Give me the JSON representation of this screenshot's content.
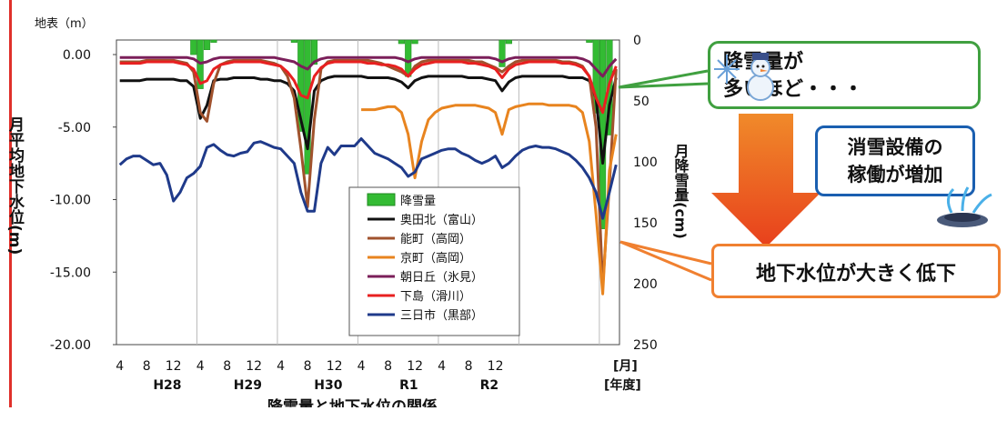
{
  "chart_data": {
    "type": "bar+line",
    "caption": "降雪量と地下水位の関係",
    "left_axis": {
      "label": "月平均地下水位(m)",
      "top_label": "地表（m）",
      "ticks": [
        "0.00",
        "-5.00",
        "-10.00",
        "-15.00",
        "-20.00"
      ],
      "range": [
        -20,
        0
      ]
    },
    "right_axis": {
      "label": "月降雪量(cm)",
      "ticks": [
        "0",
        "50",
        "100",
        "150",
        "200",
        "250"
      ],
      "range": [
        0,
        250
      ]
    },
    "x_month_ticks": [
      "4",
      "8",
      "12",
      "4",
      "8",
      "12",
      "4",
      "8",
      "12",
      "4",
      "8",
      "12",
      "4",
      "8",
      "12"
    ],
    "x_year_labels": [
      "H28",
      "H29",
      "H30",
      "R1",
      "R2"
    ],
    "x_unit_month": "[月]",
    "x_unit_year": "[年度]",
    "snowfall": {
      "name": "降雪量",
      "color": "#33bb33",
      "values": [
        0,
        0,
        0,
        0,
        0,
        0,
        0,
        0,
        0,
        0,
        0,
        12,
        40,
        8,
        2,
        0,
        0,
        0,
        0,
        0,
        0,
        0,
        0,
        0,
        0,
        0,
        2,
        75,
        110,
        20,
        0,
        0,
        0,
        0,
        0,
        0,
        0,
        0,
        0,
        0,
        0,
        0,
        3,
        30,
        3,
        0,
        0,
        0,
        0,
        0,
        0,
        0,
        0,
        0,
        0,
        0,
        0,
        22,
        3,
        0,
        0,
        0,
        0,
        0,
        0,
        0,
        0,
        0,
        0,
        0,
        2,
        60,
        155,
        78,
        0
      ]
    },
    "series": [
      {
        "name": "奥田北（富山）",
        "color": "#111111",
        "values": [
          -1.8,
          -1.8,
          -1.8,
          -1.8,
          -1.7,
          -1.7,
          -1.7,
          -1.7,
          -1.7,
          -1.8,
          -1.8,
          -2.2,
          -4.4,
          -3.5,
          -1.8,
          -1.7,
          -1.7,
          -1.6,
          -1.6,
          -1.6,
          -1.6,
          -1.7,
          -1.7,
          -1.8,
          -1.8,
          -2.0,
          -2.5,
          -4.5,
          -6.5,
          -2.5,
          -1.8,
          -1.6,
          -1.5,
          -1.5,
          -1.5,
          -1.5,
          -1.5,
          -1.6,
          -1.6,
          -1.6,
          -1.6,
          -1.7,
          -1.9,
          -2.3,
          -1.8,
          -1.6,
          -1.5,
          -1.5,
          -1.5,
          -1.5,
          -1.5,
          -1.5,
          -1.6,
          -1.6,
          -1.6,
          -1.7,
          -1.8,
          -2.5,
          -1.9,
          -1.6,
          -1.5,
          -1.5,
          -1.5,
          -1.5,
          -1.5,
          -1.5,
          -1.5,
          -1.6,
          -1.6,
          -1.6,
          -1.8,
          -3.0,
          -7.5,
          -3.5,
          -1.6
        ]
      },
      {
        "name": "能町（高岡）",
        "color": "#a0522d",
        "values": [
          -0.5,
          -0.5,
          -0.5,
          -0.5,
          -0.4,
          -0.4,
          -0.4,
          -0.4,
          -0.4,
          -0.5,
          -0.6,
          -1.2,
          -4.0,
          -4.6,
          -2.0,
          -0.7,
          -0.5,
          -0.4,
          -0.4,
          -0.4,
          -0.4,
          -0.4,
          -0.5,
          -0.6,
          -0.8,
          -1.5,
          -3.0,
          -6.5,
          -10.5,
          -4.5,
          -1.0,
          -0.5,
          -0.4,
          -0.4,
          -0.4,
          -0.4,
          -0.4,
          -0.4,
          -0.5,
          -0.6,
          -0.8,
          -1.0,
          -1.2,
          -1.5,
          -0.8,
          -0.5,
          -0.4,
          -0.4,
          -0.4,
          -0.4,
          -0.4,
          -0.4,
          -0.4,
          -0.5,
          -0.5,
          -0.7,
          -0.9,
          -1.2,
          -0.8,
          -0.5,
          -0.4,
          -0.4,
          -0.4,
          -0.4,
          -0.4,
          -0.4,
          -0.5,
          -0.5,
          -0.6,
          -0.8,
          -1.5,
          -5.0,
          -16.0,
          -9.0,
          -1.0
        ]
      },
      {
        "name": "京町（高岡）",
        "color": "#e8841f",
        "values": [
          null,
          null,
          null,
          null,
          null,
          null,
          null,
          null,
          null,
          null,
          null,
          null,
          null,
          null,
          null,
          null,
          null,
          null,
          null,
          null,
          null,
          null,
          null,
          null,
          null,
          null,
          null,
          null,
          null,
          null,
          null,
          null,
          null,
          null,
          null,
          null,
          -3.8,
          -3.8,
          -3.8,
          -3.7,
          -3.6,
          -3.6,
          -4.0,
          -5.5,
          -8.5,
          -6.0,
          -4.5,
          -4.0,
          -3.7,
          -3.6,
          -3.5,
          -3.5,
          -3.5,
          -3.5,
          -3.6,
          -3.7,
          -4.0,
          -5.5,
          -3.8,
          -3.6,
          -3.5,
          -3.4,
          -3.4,
          -3.4,
          -3.5,
          -3.5,
          -3.5,
          -3.5,
          -3.6,
          -4.0,
          -6.0,
          -11.0,
          -16.5,
          -8.0,
          -5.5
        ]
      },
      {
        "name": "朝日丘（氷見）",
        "color": "#7b1f5a",
        "values": [
          -0.2,
          -0.2,
          -0.2,
          -0.2,
          -0.2,
          -0.2,
          -0.2,
          -0.2,
          -0.2,
          -0.2,
          -0.2,
          -0.3,
          -0.6,
          -0.5,
          -0.3,
          -0.2,
          -0.2,
          -0.2,
          -0.2,
          -0.2,
          -0.2,
          -0.2,
          -0.2,
          -0.2,
          -0.3,
          -0.4,
          -0.5,
          -0.8,
          -1.0,
          -0.5,
          -0.3,
          -0.2,
          -0.2,
          -0.2,
          -0.2,
          -0.2,
          -0.2,
          -0.2,
          -0.2,
          -0.2,
          -0.2,
          -0.2,
          -0.3,
          -0.5,
          -0.3,
          -0.2,
          -0.2,
          -0.2,
          -0.2,
          -0.2,
          -0.2,
          -0.2,
          -0.2,
          -0.2,
          -0.2,
          -0.2,
          -0.3,
          -0.5,
          -0.3,
          -0.2,
          -0.2,
          -0.2,
          -0.2,
          -0.2,
          -0.2,
          -0.2,
          -0.2,
          -0.2,
          -0.2,
          -0.3,
          -0.5,
          -1.0,
          -1.5,
          -0.8,
          -0.3
        ]
      },
      {
        "name": "下島（滑川）",
        "color": "#e82020",
        "values": [
          -0.6,
          -0.6,
          -0.6,
          -0.6,
          -0.5,
          -0.5,
          -0.5,
          -0.5,
          -0.5,
          -0.6,
          -0.7,
          -1.0,
          -2.0,
          -1.8,
          -1.0,
          -0.7,
          -0.6,
          -0.5,
          -0.5,
          -0.5,
          -0.5,
          -0.5,
          -0.6,
          -0.7,
          -0.8,
          -1.2,
          -1.8,
          -2.8,
          -3.0,
          -1.5,
          -0.9,
          -0.6,
          -0.5,
          -0.5,
          -0.5,
          -0.5,
          -0.5,
          -0.6,
          -0.6,
          -0.7,
          -0.7,
          -0.8,
          -1.0,
          -1.5,
          -1.0,
          -0.7,
          -0.6,
          -0.5,
          -0.5,
          -0.5,
          -0.5,
          -0.5,
          -0.6,
          -0.6,
          -0.7,
          -0.8,
          -1.0,
          -1.6,
          -1.0,
          -0.7,
          -0.6,
          -0.5,
          -0.5,
          -0.5,
          -0.5,
          -0.5,
          -0.6,
          -0.6,
          -0.7,
          -0.9,
          -1.5,
          -3.0,
          -4.0,
          -2.0,
          -0.8
        ]
      },
      {
        "name": "三日市（黒部）",
        "color": "#1f3a8a",
        "values": [
          -7.6,
          -7.2,
          -7.0,
          -7.0,
          -7.3,
          -7.6,
          -7.5,
          -8.3,
          -10.1,
          -9.5,
          -8.5,
          -8.2,
          -7.7,
          -6.4,
          -6.2,
          -6.6,
          -6.9,
          -7.0,
          -6.8,
          -6.7,
          -6.1,
          -6.0,
          -6.2,
          -6.4,
          -6.5,
          -7.0,
          -7.5,
          -9.5,
          -10.8,
          -10.8,
          -7.5,
          -6.4,
          -6.9,
          -6.3,
          -6.3,
          -6.3,
          -5.8,
          -6.3,
          -6.8,
          -7.0,
          -7.2,
          -7.5,
          -7.8,
          -8.4,
          -8.1,
          -7.2,
          -7.0,
          -6.8,
          -6.6,
          -6.5,
          -6.5,
          -6.8,
          -7.0,
          -7.3,
          -7.5,
          -7.3,
          -7.0,
          -7.8,
          -7.5,
          -7.0,
          -6.6,
          -6.4,
          -6.3,
          -6.4,
          -6.4,
          -6.5,
          -6.7,
          -6.9,
          -7.3,
          -7.8,
          -8.5,
          -9.5,
          -11.3,
          -9.5,
          -7.6
        ]
      }
    ]
  },
  "callouts": {
    "snow_line1": "降雪量が",
    "snow_line2": "多いほど・・・",
    "facility_line1": "消雪設備の",
    "facility_line2": "稼働が増加",
    "groundwater": "地下水位が大きく低下"
  },
  "colors": {
    "arrow_top": "#f08a2a",
    "arrow_bottom": "#e8401c",
    "callout_green": "#40a040",
    "callout_blue": "#1a5fb0",
    "callout_orange": "#f08030"
  },
  "icons": [
    "snowman-icon",
    "snowflake-icon",
    "sprinkler-icon"
  ]
}
